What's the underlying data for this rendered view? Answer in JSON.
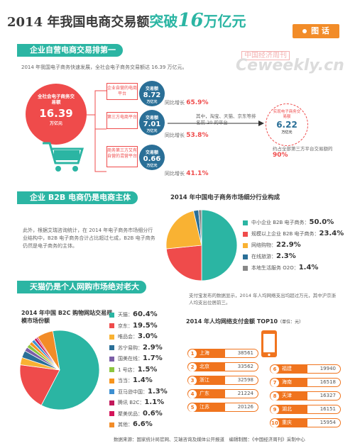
{
  "title": {
    "pre": "2014 年我国电商交易额",
    "hl": "突破",
    "big": "16",
    "post": "万亿元"
  },
  "tag": "图 话",
  "watermark": {
    "cn": "中国经济周刊",
    "en": "Ceweekly.cn"
  },
  "section1": {
    "head": "企业自营电商交易排第一",
    "para": "2014 年我国电子商务快速发展，全社会电子商务交易额达 16.39 万亿元。",
    "total": {
      "label": "全社会电子商务交易额",
      "value": "16.39",
      "unit": "万亿元"
    },
    "rows": [
      {
        "label": "企业自营的电商平台",
        "box_label": "交易额",
        "value": "8.72",
        "unit": "万亿元",
        "growth_label": "同比增长",
        "growth": "65.9%"
      },
      {
        "label": "第三方电商平台",
        "box_label": "交易额",
        "value": "7.01",
        "unit": "万亿元",
        "growth_label": "同比增长",
        "growth": "53.8%"
      },
      {
        "label": "商务第三方又有自营的混营平台",
        "box_label": "交易额",
        "value": "0.66",
        "unit": "万亿元",
        "growth_label": "同比增长",
        "growth": "41.1%"
      }
    ],
    "top20": {
      "text": "其中，淘宝、天猫、京东等排名前 20 的平台",
      "label": "实现电子商务交易额",
      "value": "6.22",
      "unit": "万亿元",
      "share_label": "约占全部第三方平台交易额的",
      "share": "90%"
    }
  },
  "section2": {
    "head": "企业 B2B 电商仍是电商主体",
    "para": "此外，根据艾瑞咨询统计，在 2014 年电子商务市场细分行业结构中，B2B 电子商务合计占比超过七成，B2B 电子商务仍然是电子商务的主体。",
    "chart_title": "2014 年中国电子商务市场细分行业构成"
  },
  "section3": {
    "head": "天猫仍是个人网购市场绝对老大",
    "para": "支付宝发布的数据显示，2014 年人均网络支出均超过万元，其中沪京浙人均支出位居前三。",
    "chart_title": "2014 年中国 B2C 购物网站交易规模市场份额",
    "top10_title": "2014 年人均网络支付金额 TOP10",
    "top10_unit": "（单位：元）"
  },
  "chart_data": [
    {
      "type": "pie",
      "title": "2014 年中国电子商务市场细分行业构成",
      "categories": [
        "中小企业 B2B 电子商务",
        "规模以上企业 B2B 电子商务",
        "网络购物",
        "在线旅游",
        "本地生活服务 O2O"
      ],
      "values_label": [
        "50.0%",
        "23.4%",
        "22.9%",
        "2.3%",
        "1.4%"
      ],
      "values": [
        50.0,
        23.4,
        22.9,
        2.3,
        1.4
      ],
      "colors": [
        "#2bb5a3",
        "#ef4b4b",
        "#f9b233",
        "#2a6f97",
        "#888888"
      ]
    },
    {
      "type": "pie",
      "title": "2014 年中国 B2C 购物网站交易规模市场份额",
      "categories": [
        "天猫",
        "京东",
        "唯品会",
        "苏宁易购",
        "国美在线",
        "1 号店",
        "当当",
        "亚马逊中国",
        "腾讯 B2C",
        "聚美优品",
        "其他"
      ],
      "values_label": [
        "60.4%",
        "19.5%",
        "3.0%",
        "2.9%",
        "1.7%",
        "1.5%",
        "1.4%",
        "1.3%",
        "1.1%",
        "0.6%",
        "6.6%"
      ],
      "values": [
        60.4,
        19.5,
        3.0,
        2.9,
        1.7,
        1.5,
        1.4,
        1.3,
        1.1,
        0.6,
        6.6
      ],
      "colors": [
        "#2bb5a3",
        "#ef4b4b",
        "#f9b233",
        "#2a6f97",
        "#7b5ea7",
        "#8dc63f",
        "#f7941d",
        "#3d8fd1",
        "#c2185b",
        "#d4145a",
        "#f28c28"
      ]
    },
    {
      "type": "table",
      "title": "2014 年人均网络支付金额 TOP10",
      "unit": "元",
      "rows": [
        {
          "rank": "1",
          "city": "上海",
          "value": "38561"
        },
        {
          "rank": "2",
          "city": "北京",
          "value": "33562"
        },
        {
          "rank": "3",
          "city": "浙江",
          "value": "32598"
        },
        {
          "rank": "4",
          "city": "广东",
          "value": "21224"
        },
        {
          "rank": "5",
          "city": "江苏",
          "value": "20126"
        },
        {
          "rank": "6",
          "city": "福建",
          "value": "19940"
        },
        {
          "rank": "7",
          "city": "海南",
          "value": "16518"
        },
        {
          "rank": "8",
          "city": "天津",
          "value": "16327"
        },
        {
          "rank": "9",
          "city": "湖北",
          "value": "16151"
        },
        {
          "rank": "10",
          "city": "重庆",
          "value": "15954"
        }
      ]
    }
  ],
  "footer": "数据来源：国家统计局官网、艾瑞咨询及媒体公开报道　编辑制图：《中国经济周刊》采制中心"
}
